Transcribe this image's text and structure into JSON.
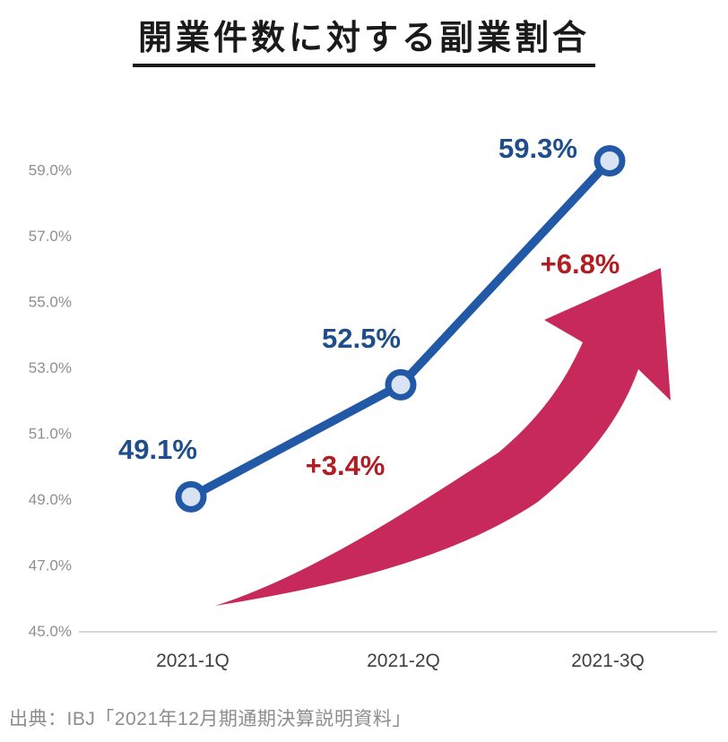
{
  "chart_data": {
    "type": "line",
    "title": "開業件数に対する副業割合",
    "categories": [
      "2021-1Q",
      "2021-2Q",
      "2021-3Q"
    ],
    "values": [
      49.1,
      52.5,
      59.3
    ],
    "point_labels": [
      "49.1%",
      "52.5%",
      "59.3%"
    ],
    "deltas": [
      "+3.4%",
      "+6.8%"
    ],
    "y_ticks": [
      "59.0%",
      "57.0%",
      "55.0%",
      "53.0%",
      "51.0%",
      "49.0%",
      "47.0%",
      "45.0%"
    ],
    "ylim": [
      45.0,
      60.0
    ],
    "grid": false,
    "legend": "none",
    "source": "出典：IBJ「2021年12月期通期決算説明資料」",
    "colors": {
      "line": "#2159A6",
      "marker_fill": "#DAE3F3",
      "value_label": "#1F4E8C",
      "delta_label": "#B01E24",
      "trend_arrow": "#C8295B",
      "tick_label": "#8F8F8F",
      "axis_line": "#C9C9C9",
      "category_label": "#3F3F3F"
    }
  }
}
